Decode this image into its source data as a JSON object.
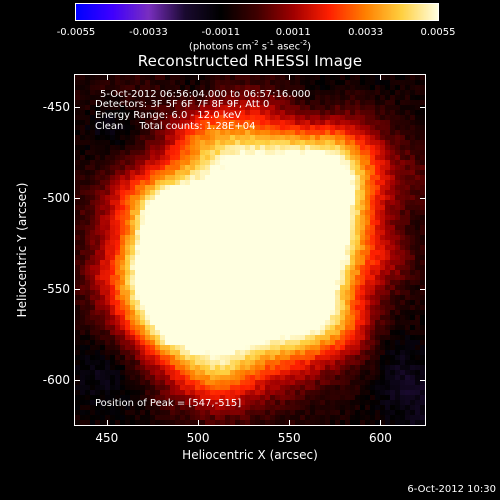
{
  "colorbar": {
    "ticks": [
      "-0.0055",
      "-0.0033",
      "-0.0011",
      "0.0011",
      "0.0033",
      "0.0055"
    ],
    "units_prefix": "(photons cm",
    "units_exp1": "-2",
    "units_mid": " s",
    "units_exp2": "-1",
    "units_mid2": " asec",
    "units_exp3": "-2",
    "units_suffix": ")"
  },
  "title": "Reconstructed RHESSI Image",
  "overlay": {
    "line1": "5-Oct-2012 06:56:04.000 to 06:57:16.000",
    "line2": "Detectors: 3F 5F 6F 7F 8F 9F, Att 0",
    "line3": "Energy Range: 6.0 - 12.0 keV",
    "line4": "Clean     Total counts: 1.28E+04",
    "peak": "Position of Peak = [547,-515]"
  },
  "axes": {
    "xlabel": "Heliocentric X (arcsec)",
    "ylabel": "Heliocentric Y (arcsec)",
    "xticks": [
      "450",
      "500",
      "550",
      "600"
    ],
    "yticks": [
      "-450",
      "-500",
      "-550",
      "-600"
    ],
    "xlim": [
      432,
      625
    ],
    "ylim": [
      -625,
      -432
    ]
  },
  "timestamp": "6-Oct-2012 10:30",
  "colors": {
    "background": "#000000",
    "colormap": [
      "#0000ff",
      "#4000ff",
      "#7a2fc0",
      "#1a0a30",
      "#000000",
      "#400000",
      "#a00000",
      "#ff2000",
      "#ff8000",
      "#ffd040",
      "#ffffe0"
    ]
  }
}
